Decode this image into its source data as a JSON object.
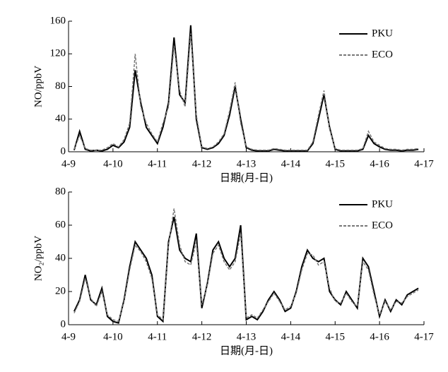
{
  "chart_data": [
    {
      "type": "line",
      "y_label": "NO/ppbV",
      "x_label": "日期(月-日)",
      "x": [
        9.125,
        9.25,
        9.375,
        9.5,
        9.625,
        9.75,
        9.875,
        10,
        10.125,
        10.25,
        10.375,
        10.5,
        10.625,
        10.75,
        10.875,
        11,
        11.125,
        11.25,
        11.375,
        11.5,
        11.625,
        11.75,
        11.875,
        12,
        12.125,
        12.25,
        12.375,
        12.5,
        12.625,
        12.75,
        12.875,
        13,
        13.125,
        13.25,
        13.375,
        13.5,
        13.625,
        13.75,
        13.875,
        14,
        14.125,
        14.25,
        14.375,
        14.5,
        14.625,
        14.75,
        14.875,
        15,
        15.125,
        15.25,
        15.375,
        15.5,
        15.625,
        15.75,
        15.875,
        16,
        16.125,
        16.25,
        16.375,
        16.5,
        16.625,
        16.75,
        16.875
      ],
      "series": [
        {
          "name": "PKU",
          "color": "#000000",
          "style": "solid",
          "values": [
            2,
            25,
            3,
            1,
            2,
            1,
            3,
            8,
            5,
            12,
            30,
            100,
            60,
            30,
            20,
            10,
            30,
            60,
            140,
            70,
            60,
            155,
            40,
            5,
            3,
            5,
            10,
            20,
            45,
            80,
            40,
            5,
            2,
            1,
            1,
            1,
            3,
            2,
            1,
            1,
            1,
            1,
            1,
            10,
            40,
            70,
            30,
            3,
            1,
            1,
            1,
            1,
            3,
            20,
            10,
            6,
            3,
            2,
            2,
            1,
            2,
            2,
            3
          ]
        },
        {
          "name": "ECO",
          "color": "#777777",
          "style": "dashed",
          "values": [
            3,
            20,
            4,
            2,
            2,
            2,
            5,
            10,
            6,
            15,
            35,
            120,
            55,
            35,
            22,
            12,
            35,
            55,
            130,
            75,
            55,
            145,
            45,
            6,
            4,
            6,
            12,
            22,
            50,
            85,
            35,
            6,
            3,
            2,
            2,
            2,
            4,
            3,
            2,
            2,
            2,
            2,
            2,
            12,
            45,
            75,
            28,
            4,
            2,
            2,
            2,
            2,
            4,
            25,
            12,
            8,
            4,
            3,
            3,
            2,
            3,
            3,
            4
          ]
        }
      ],
      "xlim": [
        9,
        17
      ],
      "ylim": [
        0,
        160
      ],
      "xticks": [
        {
          "value": 9,
          "label": "4-9"
        },
        {
          "value": 10,
          "label": "4-10"
        },
        {
          "value": 11,
          "label": "4-11"
        },
        {
          "value": 12,
          "label": "4-12"
        },
        {
          "value": 13,
          "label": "4-13"
        },
        {
          "value": 14,
          "label": "4-14"
        },
        {
          "value": 15,
          "label": "4-15"
        },
        {
          "value": 16,
          "label": "4-16"
        },
        {
          "value": 17,
          "label": "4-17"
        }
      ],
      "yticks": [
        0,
        40,
        80,
        120,
        160
      ],
      "legend": "upper right"
    },
    {
      "type": "line",
      "y_label": "NO₂/ppbV",
      "x_label": "日期(月-日)",
      "x": [
        9.125,
        9.25,
        9.375,
        9.5,
        9.625,
        9.75,
        9.875,
        10,
        10.125,
        10.25,
        10.375,
        10.5,
        10.625,
        10.75,
        10.875,
        11,
        11.125,
        11.25,
        11.375,
        11.5,
        11.625,
        11.75,
        11.875,
        12,
        12.125,
        12.25,
        12.375,
        12.5,
        12.625,
        12.75,
        12.875,
        13,
        13.125,
        13.25,
        13.375,
        13.5,
        13.625,
        13.75,
        13.875,
        14,
        14.125,
        14.25,
        14.375,
        14.5,
        14.625,
        14.75,
        14.875,
        15,
        15.125,
        15.25,
        15.375,
        15.5,
        15.625,
        15.75,
        15.875,
        16,
        16.125,
        16.25,
        16.375,
        16.5,
        16.625,
        16.75,
        16.875
      ],
      "series": [
        {
          "name": "PKU",
          "color": "#000000",
          "style": "solid",
          "values": [
            8,
            15,
            30,
            15,
            12,
            22,
            5,
            2,
            1,
            15,
            35,
            50,
            45,
            40,
            30,
            5,
            2,
            50,
            65,
            45,
            40,
            38,
            55,
            10,
            25,
            45,
            50,
            40,
            35,
            40,
            60,
            3,
            5,
            3,
            8,
            15,
            20,
            15,
            8,
            10,
            20,
            35,
            45,
            40,
            38,
            40,
            20,
            15,
            12,
            20,
            15,
            10,
            40,
            35,
            20,
            5,
            15,
            8,
            15,
            12,
            18,
            20,
            22
          ]
        },
        {
          "name": "ECO",
          "color": "#777777",
          "style": "dashed",
          "values": [
            7,
            14,
            28,
            16,
            11,
            20,
            6,
            3,
            2,
            14,
            33,
            48,
            44,
            38,
            28,
            6,
            3,
            48,
            70,
            48,
            38,
            36,
            50,
            12,
            24,
            43,
            48,
            38,
            33,
            38,
            55,
            4,
            6,
            4,
            9,
            14,
            19,
            14,
            9,
            11,
            19,
            33,
            43,
            42,
            36,
            38,
            22,
            14,
            13,
            19,
            14,
            11,
            38,
            33,
            18,
            6,
            14,
            9,
            14,
            13,
            17,
            19,
            21
          ]
        }
      ],
      "xlim": [
        9,
        17
      ],
      "ylim": [
        0,
        80
      ],
      "xticks": [
        {
          "value": 9,
          "label": "4-9"
        },
        {
          "value": 10,
          "label": "4-10"
        },
        {
          "value": 11,
          "label": "4-11"
        },
        {
          "value": 12,
          "label": "4-12"
        },
        {
          "value": 13,
          "label": "4-13"
        },
        {
          "value": 14,
          "label": "4-14"
        },
        {
          "value": 15,
          "label": "4-15"
        },
        {
          "value": 16,
          "label": "4-16"
        },
        {
          "value": 17,
          "label": "4-17"
        }
      ],
      "yticks": [
        0,
        20,
        40,
        60,
        80
      ],
      "legend": "upper right"
    }
  ]
}
